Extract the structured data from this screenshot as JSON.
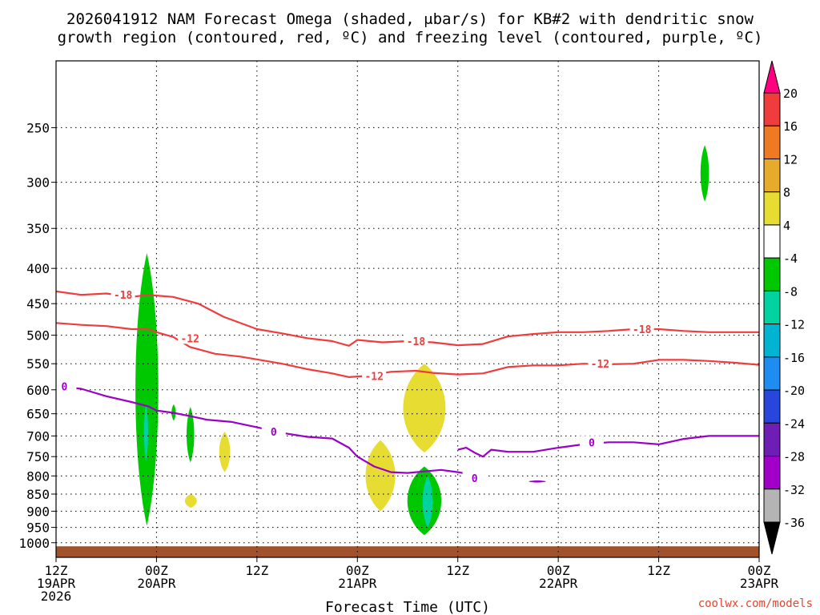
{
  "chart_data": {
    "type": "time-height",
    "title_line1": "2026041912 NAM Forecast Omega (shaded, μbar/s) for KB#2 with dendritic snow",
    "title_line2": "growth region (contoured, red, ºC) and freezing level (contoured, purple, ºC)",
    "xlabel": "Forecast Time (UTC)",
    "credit": "coolwx.com/models",
    "x_ticks": [
      {
        "hour": 0,
        "line1": "12Z",
        "line2": "19APR",
        "line3": "2026"
      },
      {
        "hour": 12,
        "line1": "00Z",
        "line2": "20APR",
        "line3": ""
      },
      {
        "hour": 24,
        "line1": "12Z",
        "line2": "",
        "line3": ""
      },
      {
        "hour": 36,
        "line1": "00Z",
        "line2": "21APR",
        "line3": ""
      },
      {
        "hour": 48,
        "line1": "12Z",
        "line2": "",
        "line3": ""
      },
      {
        "hour": 60,
        "line1": "00Z",
        "line2": "22APR",
        "line3": ""
      },
      {
        "hour": 72,
        "line1": "12Z",
        "line2": "",
        "line3": ""
      },
      {
        "hour": 84,
        "line1": "00Z",
        "line2": "23APR",
        "line3": ""
      }
    ],
    "y_ticks": [
      250,
      300,
      350,
      400,
      450,
      500,
      550,
      600,
      650,
      700,
      750,
      800,
      850,
      900,
      950,
      1000
    ],
    "ylim_hpa": [
      200,
      1050
    ],
    "xlim_hours": [
      0,
      84
    ],
    "colorbar": {
      "labels": [
        "20",
        "16",
        "12",
        "8",
        "4",
        "-4",
        "-8",
        "-12",
        "-16",
        "-20",
        "-24",
        "-28",
        "-32",
        "-36"
      ],
      "colors": [
        "#ff0080",
        "#f03c3c",
        "#f07a24",
        "#e6ab2b",
        "#e6dc32",
        "#ffffff",
        "#00c800",
        "#00d2a0",
        "#00b4d2",
        "#1e8cf0",
        "#2846dc",
        "#6e1eb4",
        "#a000c8",
        "#b4b4b4",
        "#000000"
      ]
    },
    "series": [
      {
        "name": "-18 C isotherm",
        "color": "#f03c3c",
        "label": "-18",
        "points": [
          [
            0,
            432
          ],
          [
            3,
            437
          ],
          [
            6,
            435
          ],
          [
            9,
            440
          ],
          [
            11,
            437
          ],
          [
            12,
            438
          ],
          [
            14,
            440
          ],
          [
            17,
            450
          ],
          [
            20,
            470
          ],
          [
            24,
            490
          ],
          [
            27,
            497
          ],
          [
            30,
            505
          ],
          [
            33,
            510
          ],
          [
            35,
            518
          ],
          [
            36,
            508
          ],
          [
            39,
            512
          ],
          [
            42,
            510
          ],
          [
            45,
            512
          ],
          [
            48,
            517
          ],
          [
            51,
            515
          ],
          [
            54,
            502
          ],
          [
            57,
            498
          ],
          [
            60,
            495
          ],
          [
            63,
            495
          ],
          [
            66,
            493
          ],
          [
            69,
            490
          ],
          [
            72,
            490
          ],
          [
            75,
            493
          ],
          [
            78,
            495
          ],
          [
            81,
            495
          ],
          [
            84,
            495
          ]
        ],
        "label_positions": [
          [
            8,
            437
          ],
          [
            43,
            510
          ],
          [
            70,
            490
          ]
        ]
      },
      {
        "name": "-12 C isotherm",
        "color": "#f03c3c",
        "label": "-12",
        "points": [
          [
            0,
            480
          ],
          [
            3,
            483
          ],
          [
            6,
            485
          ],
          [
            9,
            490
          ],
          [
            11,
            490
          ],
          [
            12,
            495
          ],
          [
            14,
            503
          ],
          [
            16,
            520
          ],
          [
            19,
            532
          ],
          [
            22,
            537
          ],
          [
            24,
            542
          ],
          [
            27,
            550
          ],
          [
            30,
            560
          ],
          [
            33,
            568
          ],
          [
            35,
            575
          ],
          [
            37,
            573
          ],
          [
            40,
            565
          ],
          [
            43,
            563
          ],
          [
            45,
            567
          ],
          [
            48,
            570
          ],
          [
            51,
            568
          ],
          [
            54,
            556
          ],
          [
            57,
            553
          ],
          [
            60,
            553
          ],
          [
            63,
            550
          ],
          [
            66,
            551
          ],
          [
            69,
            550
          ],
          [
            72,
            543
          ],
          [
            75,
            543
          ],
          [
            78,
            545
          ],
          [
            81,
            548
          ],
          [
            84,
            552
          ]
        ],
        "label_positions": [
          [
            16,
            505
          ],
          [
            38,
            573
          ],
          [
            65,
            550
          ]
        ]
      },
      {
        "name": "0 C isotherm (freezing level)",
        "color": "#9a00c8",
        "label": "0",
        "points": [
          [
            0,
            593
          ],
          [
            3,
            598
          ],
          [
            6,
            613
          ],
          [
            9,
            625
          ],
          [
            11,
            634
          ],
          [
            12,
            643
          ],
          [
            14,
            648
          ],
          [
            16,
            655
          ],
          [
            18,
            663
          ],
          [
            21,
            668
          ],
          [
            24,
            680
          ],
          [
            27,
            693
          ],
          [
            30,
            702
          ],
          [
            33,
            706
          ],
          [
            35,
            728
          ],
          [
            36,
            750
          ],
          [
            38,
            775
          ],
          [
            40,
            790
          ],
          [
            42,
            792
          ],
          [
            44,
            788
          ],
          [
            46,
            784
          ],
          [
            48,
            790
          ],
          [
            50,
            798
          ],
          [
            51,
            806
          ]
        ],
        "label_positions": [
          [
            1,
            593
          ],
          [
            26,
            690
          ],
          [
            50,
            806
          ]
        ]
      },
      {
        "name": "0 C isotherm (freezing level, east)",
        "color": "#9a00c8",
        "label": "0",
        "points": [
          [
            48,
            733
          ],
          [
            49,
            728
          ],
          [
            50,
            740
          ],
          [
            51,
            750
          ],
          [
            52,
            733
          ],
          [
            54,
            738
          ],
          [
            57,
            738
          ],
          [
            60,
            728
          ],
          [
            63,
            720
          ],
          [
            66,
            715
          ],
          [
            69,
            715
          ],
          [
            72,
            720
          ],
          [
            75,
            707
          ],
          [
            78,
            700
          ],
          [
            81,
            700
          ],
          [
            84,
            700
          ]
        ],
        "label_positions": [
          [
            64,
            715
          ]
        ]
      }
    ],
    "shaded_regions": [
      {
        "omega": "-4 to -8",
        "color": "#00c800",
        "hour_range": [
          9.5,
          12.2
        ],
        "hpa_range": [
          380,
          945
        ]
      },
      {
        "omega": "-8 to -12",
        "color": "#00d2a0",
        "hour_range": [
          10.5,
          11.0
        ],
        "hpa_range": [
          630,
          760
        ]
      },
      {
        "omega": "-4 to -8",
        "color": "#00c800",
        "hour_range": [
          13.8,
          14.3
        ],
        "hpa_range": [
          630,
          665
        ]
      },
      {
        "omega": "-4 to -8",
        "color": "#00c800",
        "hour_range": [
          15.6,
          16.5
        ],
        "hpa_range": [
          635,
          765
        ]
      },
      {
        "omega": "-4 to -8",
        "color": "#00c800",
        "hour_range": [
          42.0,
          46.0
        ],
        "hpa_range": [
          775,
          975
        ]
      },
      {
        "omega": "-8 to -12",
        "color": "#00d2a0",
        "hour_range": [
          43.8,
          45.0
        ],
        "hpa_range": [
          800,
          950
        ]
      },
      {
        "omega": "-4 to -8",
        "color": "#00c800",
        "hour_range": [
          77.0,
          78.0
        ],
        "hpa_range": [
          265,
          320
        ]
      },
      {
        "omega": "4 to 8",
        "color": "#e6dc32",
        "hour_range": [
          19.5,
          20.8
        ],
        "hpa_range": [
          690,
          790
        ]
      },
      {
        "omega": "4 to 8",
        "color": "#e6dc32",
        "hour_range": [
          15.4,
          16.8
        ],
        "hpa_range": [
          850,
          890
        ]
      },
      {
        "omega": "4 to 8",
        "color": "#e6dc32",
        "hour_range": [
          37.0,
          40.5
        ],
        "hpa_range": [
          710,
          900
        ]
      },
      {
        "omega": "4 to 8",
        "color": "#e6dc32",
        "hour_range": [
          41.5,
          46.5
        ],
        "hpa_range": [
          550,
          740
        ]
      },
      {
        "omega": "-28 to -32",
        "color": "#a000c8",
        "hour_range": [
          56.5,
          58.5
        ],
        "hpa_range": [
          812,
          818
        ]
      }
    ],
    "terrain_color": "#a0522d"
  }
}
